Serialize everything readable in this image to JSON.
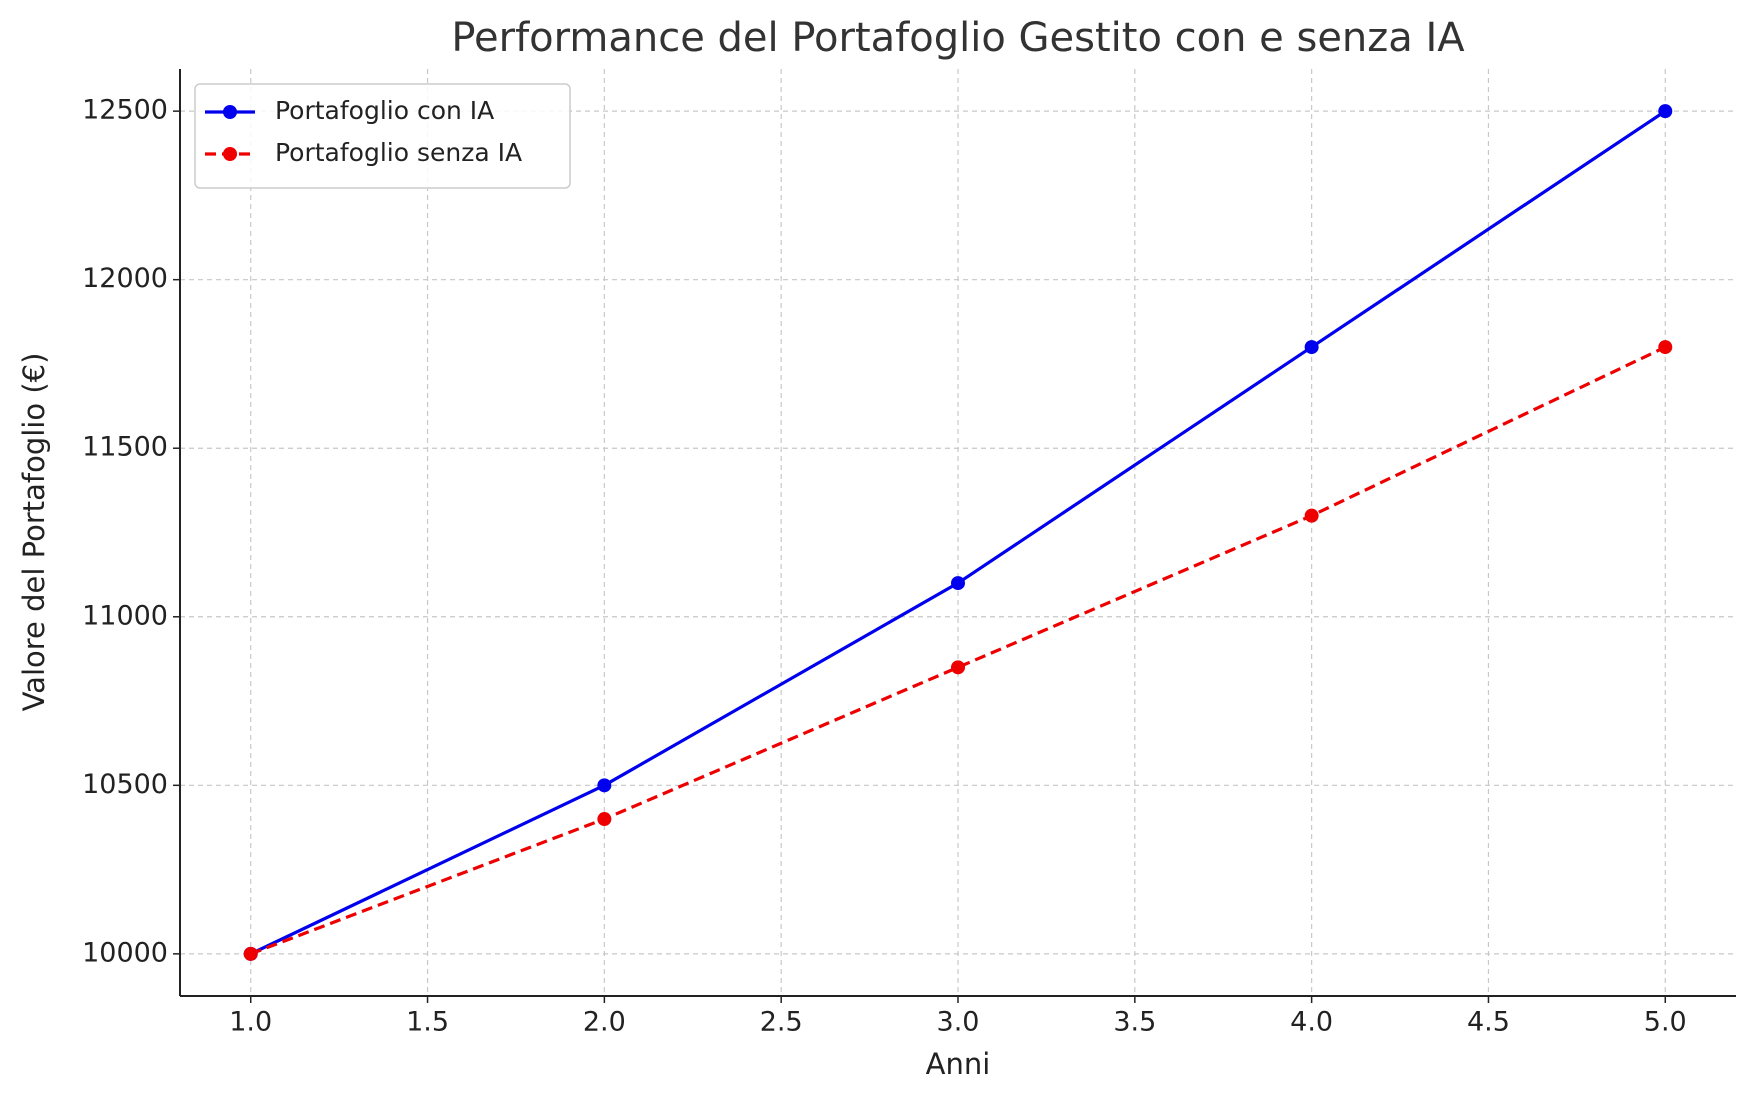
{
  "chart_data": {
    "type": "line",
    "title": "Performance del Portafoglio Gestito con e senza IA",
    "x_label": "Anni",
    "y_label": "Valore del Portafoglio (€)",
    "x": [
      1,
      2,
      3,
      4,
      5
    ],
    "series": [
      {
        "name": "Portafoglio con IA",
        "color": "#0000ee",
        "dash": false,
        "values": [
          10000,
          10500,
          11100,
          11800,
          12500
        ]
      },
      {
        "name": "Portafoglio senza IA",
        "color": "#ee0000",
        "dash": true,
        "values": [
          10000,
          10400,
          10850,
          11300,
          11800
        ]
      }
    ],
    "xlim": [
      0.8,
      5.2
    ],
    "ylim": [
      9875,
      12625
    ],
    "xticks": [
      {
        "value": 1,
        "label": "1.0"
      },
      {
        "value": 1.5,
        "label": "1.5"
      },
      {
        "value": 2,
        "label": "2.0"
      },
      {
        "value": 2.5,
        "label": "2.5"
      },
      {
        "value": 3,
        "label": "3.0"
      },
      {
        "value": 3.5,
        "label": "3.5"
      },
      {
        "value": 4,
        "label": "4.0"
      },
      {
        "value": 4.5,
        "label": "4.5"
      },
      {
        "value": 5,
        "label": "5.0"
      }
    ],
    "yticks": [
      10000,
      10500,
      11000,
      11500,
      12000,
      12500
    ],
    "grid": true,
    "legend": "upper-left"
  }
}
